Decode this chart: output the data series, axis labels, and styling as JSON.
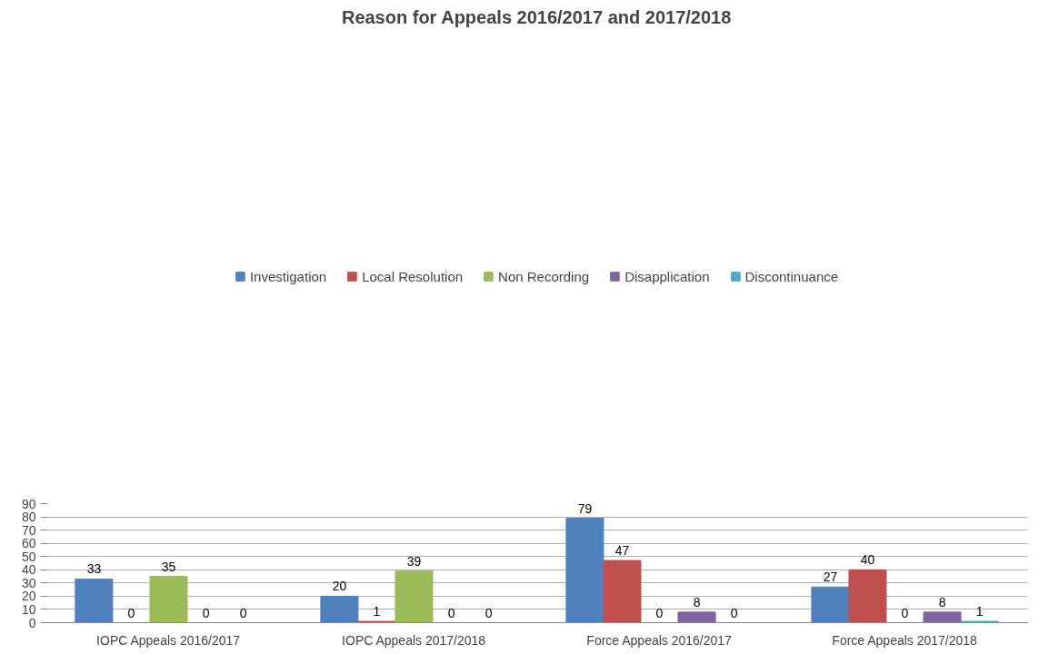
{
  "chart_data": {
    "type": "bar",
    "title": "Reason for Appeals 2016/2017 and 2017/2018",
    "categories": [
      "IOPC Appeals 2016/2017",
      "IOPC Appeals 2017/2018",
      "Force Appeals 2016/2017",
      "Force Appeals 2017/2018"
    ],
    "series": [
      {
        "name": "Investigation",
        "color": "#4f81bd",
        "values": [
          33,
          20,
          79,
          27
        ]
      },
      {
        "name": "Local Resolution",
        "color": "#c0504d",
        "values": [
          0,
          1,
          47,
          40
        ]
      },
      {
        "name": "Non Recording",
        "color": "#9bbb59",
        "values": [
          35,
          39,
          0,
          0
        ]
      },
      {
        "name": "Disapplication",
        "color": "#8064a2",
        "values": [
          0,
          0,
          8,
          8
        ]
      },
      {
        "name": "Discontinuance",
        "color": "#4bacc6",
        "values": [
          0,
          0,
          0,
          1
        ]
      }
    ],
    "ylim": [
      0,
      90
    ],
    "yticks": [
      0,
      10,
      20,
      30,
      40,
      50,
      60,
      70,
      80,
      90
    ],
    "grid": "y",
    "legend": "top",
    "data_labels": true
  }
}
